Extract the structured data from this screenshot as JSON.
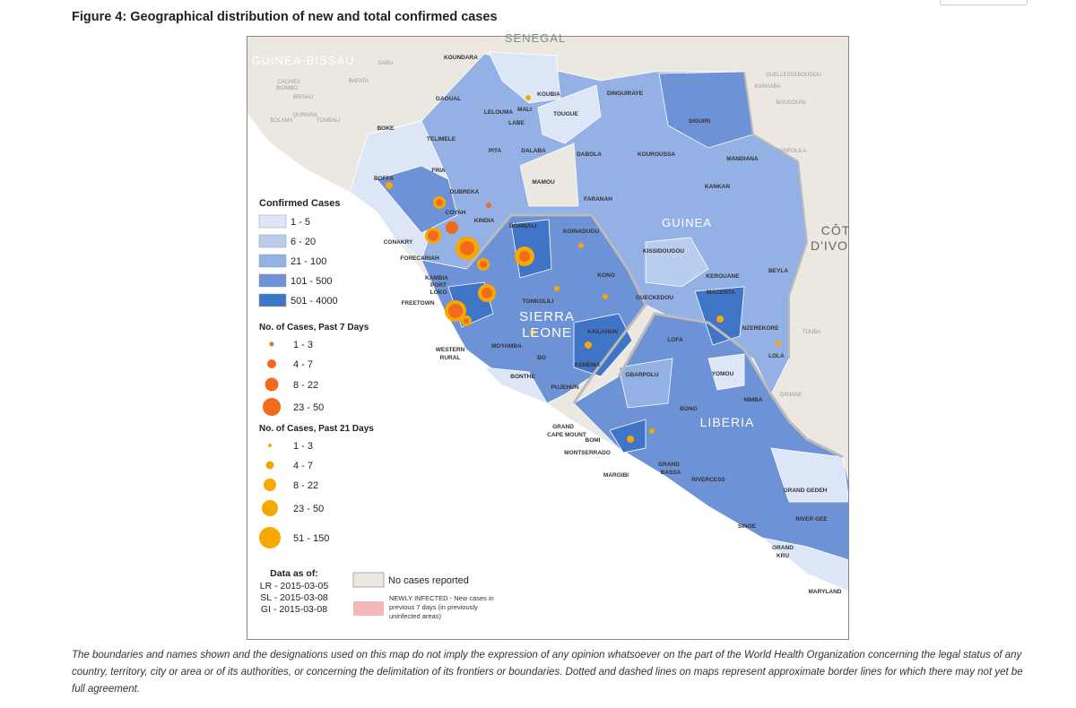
{
  "title": "Figure 4: Geographical distribution of new and total confirmed cases",
  "map": {
    "countries": [
      "SENEGAL",
      "GUINEA-BISSAU",
      "GUINEA",
      "SIERRA",
      "LEONE",
      "LIBERIA",
      "CÔT",
      "D'IVO"
    ],
    "places": [
      "KOUNDARA",
      "MALI",
      "KOUBIA",
      "DINGUIRAYE",
      "GAOUAL",
      "LELOUMA",
      "LABE",
      "TOUGUE",
      "SIGUIRI",
      "BOKE",
      "TELIMELE",
      "PITA",
      "DALABA",
      "DABOLA",
      "KOUROUSSA",
      "MANDIANA",
      "FRIA",
      "MAMOU",
      "BOFFA",
      "DUBREKA",
      "FARANAH",
      "KANKAN",
      "COYAH",
      "KINDIA",
      "KOINADUGU",
      "BOMBALI",
      "CONAKRY",
      "KISSIDOUGOU",
      "FORECARIAH",
      "BEYLA",
      "KAMBIA",
      "PORT",
      "LOKO",
      "KONO",
      "KEROUANE",
      "TONKOLILI",
      "FREETOWN",
      "GUECKEDOU",
      "MACENTA",
      "KAILAHUN",
      "NZEREKORE",
      "MOYAMBA",
      "WESTERN",
      "RURAL",
      "BO",
      "KENEMA",
      "LOFA",
      "LOLA",
      "YOMOU",
      "BONTHE",
      "GBARPOLU",
      "PUJEHUN",
      "NIMBA",
      "BONG",
      "GRAND",
      "CAPE MOUNT",
      "BOMI",
      "MONTSERRADO",
      "MARGIBI",
      "GRAND",
      "BASSA",
      "RIVERCESS",
      "GRAND GEDEH",
      "SINOE",
      "RIVER GEE",
      "GRAND",
      "KRU",
      "MARYLAND"
    ],
    "outer_places": [
      "GABU",
      "BAFATA",
      "CACHEU",
      "BIOMBO",
      "BISSAU",
      "BOLAMA",
      "QUINARA",
      "TOMBALI",
      "KANGABA",
      "OUELLESSEBOUGOU",
      "BOUGOUNI",
      "YANFOLILA",
      "TOUBA",
      "DANANE"
    ]
  },
  "legend": {
    "confirmed_title": "Confirmed Cases",
    "confirmed": [
      "1 - 5",
      "6 - 20",
      "21 - 100",
      "101 - 500",
      "501 - 4000"
    ],
    "past7_title": "No. of Cases, Past 7 Days",
    "past7": [
      "1 - 3",
      "4 - 7",
      "8 - 22",
      "23 - 50"
    ],
    "past21_title": "No. of Cases, Past 21 Days",
    "past21": [
      "1 - 3",
      "4 - 7",
      "8 - 22",
      "23 - 50",
      "51 - 150"
    ],
    "no_cases": "No cases reported",
    "newly_infected": [
      "NEWLY INFECTED - New cases in",
      "previous 7 days (in previously",
      "uninfected areas)"
    ]
  },
  "data_as_of": {
    "title": "Data as of:",
    "lines": [
      "LR - 2015-03-05",
      "SL - 2015-03-08",
      "GI - 2015-03-08"
    ]
  },
  "footnote": "The boundaries and names shown and the designations used on this map do not imply the expression of any opinion whatsoever on the part of the World Health Organization concerning the legal status of any country, territory, city or area or of its authorities, or concerning the delimitation of its frontiers or boundaries. Dotted and dashed lines on maps represent approximate border lines for which there may not yet be full agreement."
}
